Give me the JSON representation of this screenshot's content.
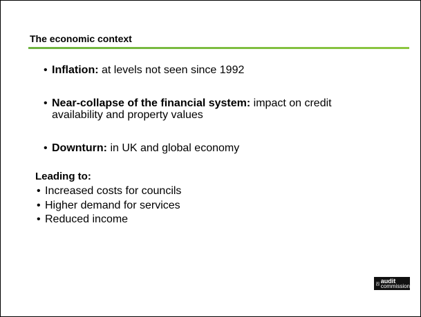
{
  "title": "The economic context",
  "bullets": [
    {
      "bold": "Inflation:",
      "text": "at levels not seen since 1992"
    },
    {
      "bold": "Near-collapse of the financial system:",
      "text": "impact on credit availability and property values"
    },
    {
      "bold": "Downturn:",
      "text": "in UK and global economy"
    }
  ],
  "leading": {
    "heading": "Leading to:",
    "items": [
      "Increased costs for councils",
      "Higher demand for services",
      "Reduced income"
    ]
  },
  "logo": {
    "line1": "audit",
    "line2": "commission"
  }
}
